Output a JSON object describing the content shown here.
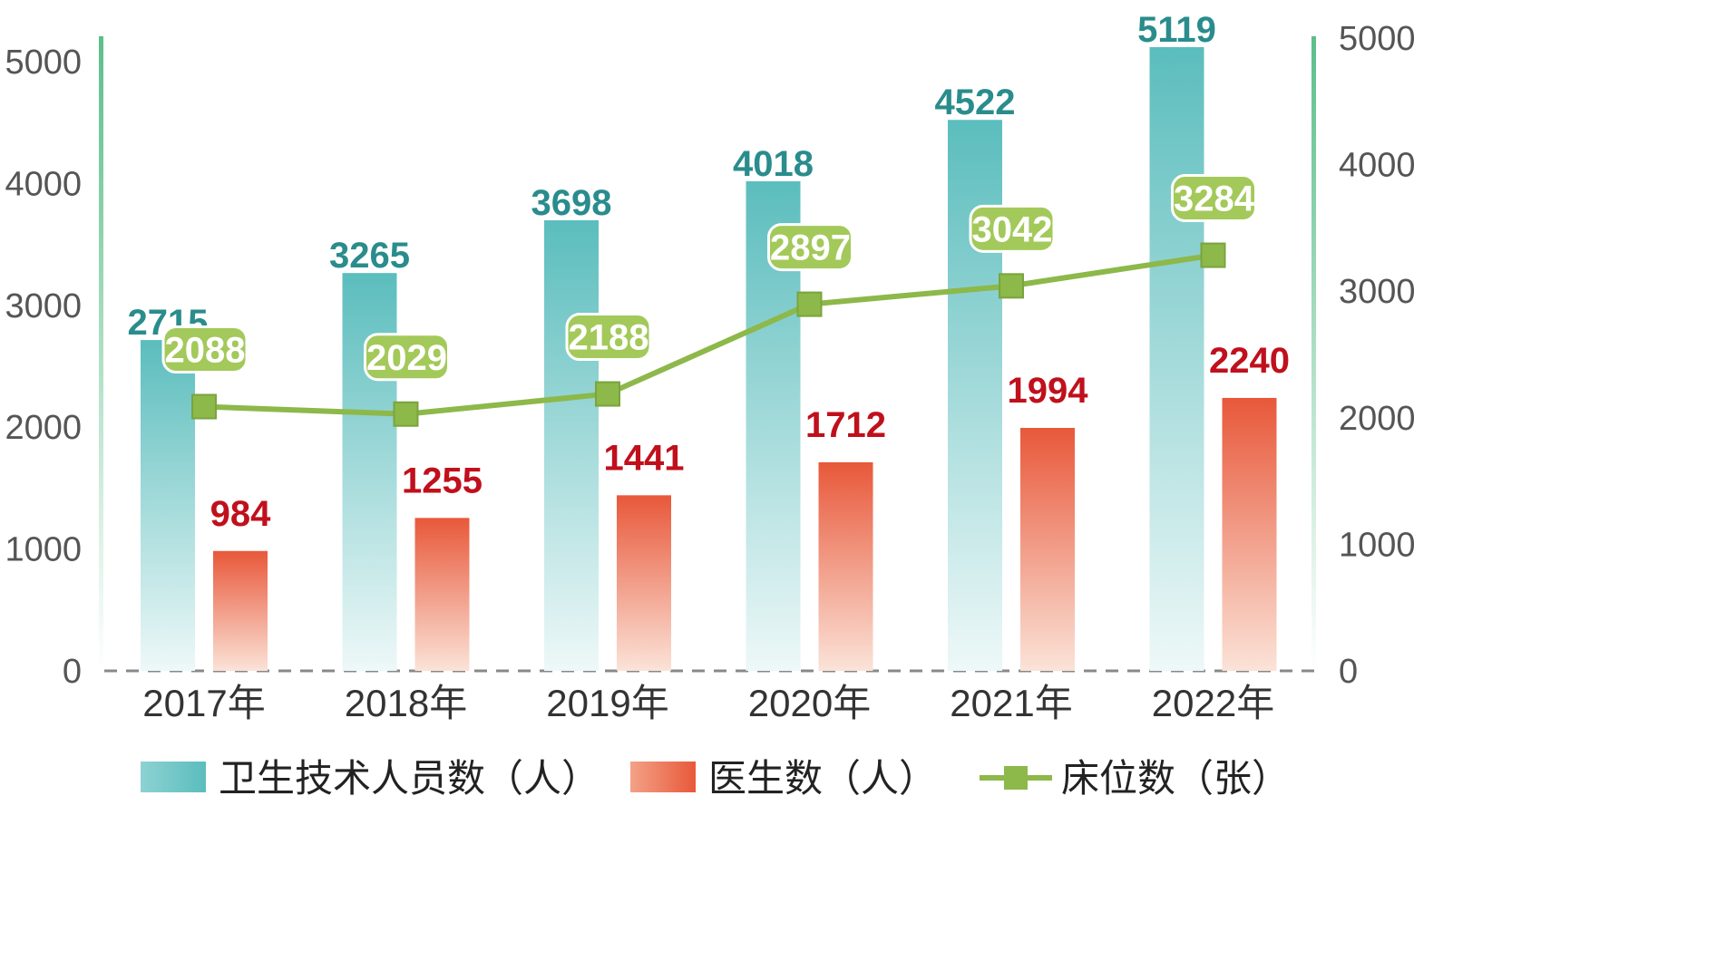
{
  "chart_data": {
    "type": "bar",
    "categories": [
      "2017年",
      "2018年",
      "2019年",
      "2020年",
      "2021年",
      "2022年"
    ],
    "series": [
      {
        "name": "卫生技术人员数（人）",
        "type": "bar",
        "axis": "left",
        "values": [
          2715,
          3265,
          3698,
          4018,
          4522,
          5119
        ]
      },
      {
        "name": "医生数（人）",
        "type": "bar",
        "axis": "left",
        "values": [
          984,
          1255,
          1441,
          1712,
          1994,
          2240
        ]
      },
      {
        "name": "床位数（张）",
        "type": "line",
        "axis": "right",
        "values": [
          2088,
          2029,
          2188,
          2897,
          3042,
          3284
        ]
      }
    ],
    "y_left": {
      "range": [
        0,
        5000
      ],
      "ticks": [
        "0",
        "1000",
        "2000",
        "3000",
        "4000",
        "5000"
      ]
    },
    "y_right": {
      "range": [
        0,
        5000
      ],
      "ticks": [
        "0",
        "1000",
        "2000",
        "3000",
        "4000",
        "5000"
      ]
    },
    "title": "",
    "xlabel": "",
    "ylabel": "",
    "grid": false,
    "legend_position": "bottom",
    "colors": {
      "staff_top": "#5bbdbd",
      "staff_bottom": "#eef8f8",
      "doctor_top": "#e8583a",
      "doctor_bottom": "#fbe3d8",
      "beds": "#8db84a",
      "beds_label_bg": "#a3c95a",
      "axis_bar": "#5cbf8a",
      "baseline": "#888888"
    }
  }
}
